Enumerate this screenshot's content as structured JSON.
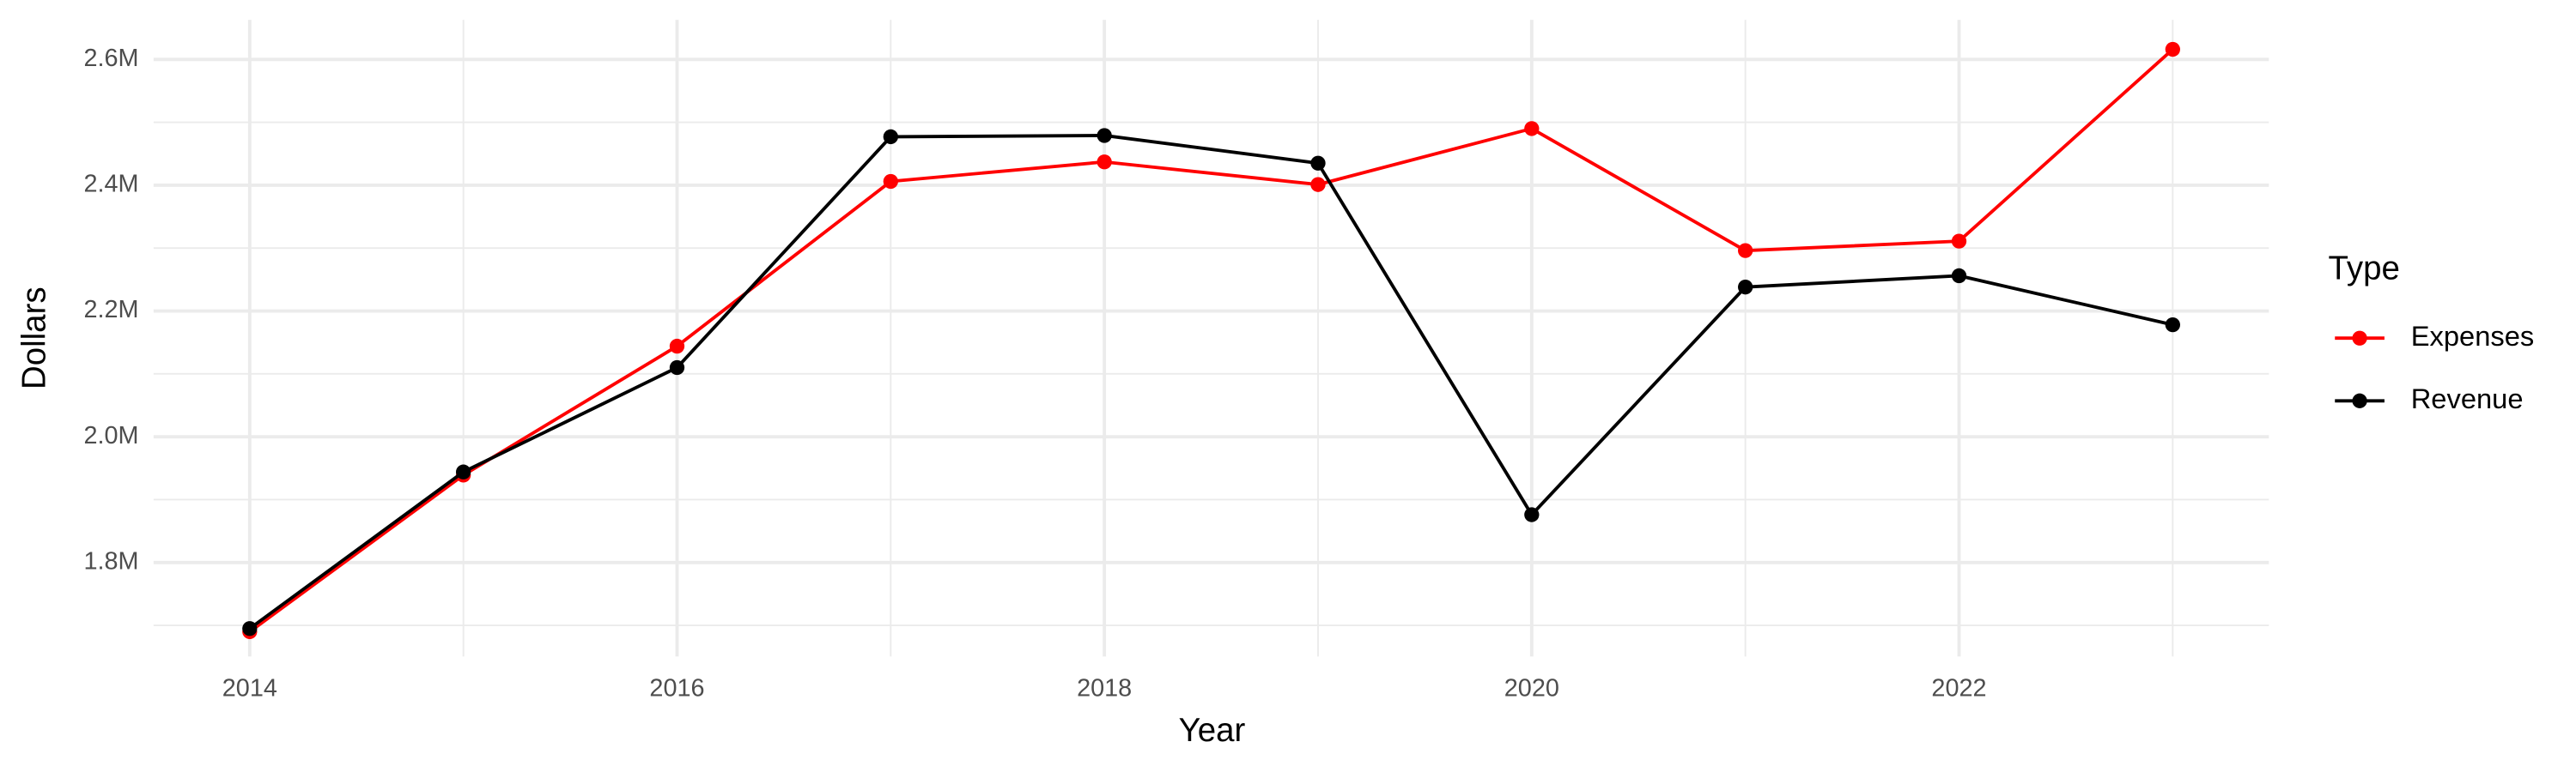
{
  "chart_data": {
    "type": "line",
    "x_label": "Year",
    "y_label": "Dollars",
    "legend_title": "Type",
    "legend_position": "right",
    "x": [
      2014,
      2015,
      2016,
      2017,
      2018,
      2019,
      2020,
      2021,
      2022,
      2023
    ],
    "series": [
      {
        "name": "Expenses",
        "color": "#ff0000",
        "values": [
          1690000,
          1939000,
          2144000,
          2406000,
          2437000,
          2401000,
          2490000,
          2296000,
          2311000,
          2616000
        ]
      },
      {
        "name": "Revenue",
        "color": "#000000",
        "values": [
          1695000,
          1944000,
          2110000,
          2477000,
          2479000,
          2435000,
          1876000,
          2238000,
          2256000,
          2178000
        ]
      }
    ],
    "xlim": [
      2013.55,
      2023.45
    ],
    "xticks": [
      2014,
      2016,
      2018,
      2020,
      2022
    ],
    "xminorticks": [
      2015,
      2017,
      2019,
      2021,
      2023
    ],
    "ylim": [
      1650500,
      2663000
    ],
    "yticks": [
      {
        "value": 1800000,
        "label": "1.8M"
      },
      {
        "value": 2000000,
        "label": "2.0M"
      },
      {
        "value": 2200000,
        "label": "2.2M"
      },
      {
        "value": 2400000,
        "label": "2.4M"
      },
      {
        "value": 2600000,
        "label": "2.6M"
      }
    ],
    "yminorticks": [
      1700000,
      1900000,
      2100000,
      2300000,
      2500000
    ],
    "grid": true
  }
}
